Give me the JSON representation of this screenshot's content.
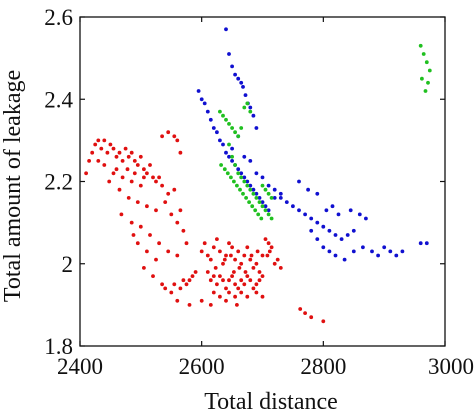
{
  "chart_data": {
    "type": "scatter",
    "title": "",
    "xlabel": "Total distance",
    "ylabel": "Total amount of leakage",
    "xlim": [
      2400,
      3000
    ],
    "ylim": [
      1.8,
      2.6
    ],
    "xticks": [
      2400,
      2600,
      2800,
      3000
    ],
    "yticks": [
      1.8,
      2,
      2.2,
      2.4,
      2.6
    ],
    "xtick_labels": [
      "2400",
      "2600",
      "2800",
      "3000"
    ],
    "ytick_labels": [
      "1.8",
      "2",
      "2.2",
      "2.4",
      "2.6"
    ],
    "grid": false,
    "legend": "none",
    "series": [
      {
        "color": "#e01010",
        "points": [
          [
            2410,
            2.22
          ],
          [
            2415,
            2.25
          ],
          [
            2420,
            2.27
          ],
          [
            2425,
            2.29
          ],
          [
            2430,
            2.3
          ],
          [
            2435,
            2.28
          ],
          [
            2440,
            2.3
          ],
          [
            2445,
            2.27
          ],
          [
            2450,
            2.29
          ],
          [
            2455,
            2.28
          ],
          [
            2460,
            2.26
          ],
          [
            2465,
            2.27
          ],
          [
            2470,
            2.25
          ],
          [
            2475,
            2.28
          ],
          [
            2480,
            2.26
          ],
          [
            2485,
            2.27
          ],
          [
            2490,
            2.25
          ],
          [
            2495,
            2.24
          ],
          [
            2500,
            2.26
          ],
          [
            2505,
            2.23
          ],
          [
            2510,
            2.22
          ],
          [
            2515,
            2.24
          ],
          [
            2520,
            2.21
          ],
          [
            2525,
            2.2
          ],
          [
            2530,
            2.21
          ],
          [
            2535,
            2.19
          ],
          [
            2440,
            2.24
          ],
          [
            2455,
            2.22
          ],
          [
            2470,
            2.21
          ],
          [
            2485,
            2.2
          ],
          [
            2500,
            2.19
          ],
          [
            2430,
            2.25
          ],
          [
            2460,
            2.23
          ],
          [
            2478,
            2.23
          ],
          [
            2490,
            2.22
          ],
          [
            2505,
            2.21
          ],
          [
            2448,
            2.2
          ],
          [
            2465,
            2.18
          ],
          [
            2480,
            2.16
          ],
          [
            2495,
            2.15
          ],
          [
            2510,
            2.14
          ],
          [
            2525,
            2.13
          ],
          [
            2540,
            2.15
          ],
          [
            2545,
            2.17
          ],
          [
            2555,
            2.18
          ],
          [
            2550,
            2.12
          ],
          [
            2560,
            2.1
          ],
          [
            2565,
            2.13
          ],
          [
            2570,
            2.08
          ],
          [
            2575,
            2.05
          ],
          [
            2468,
            2.12
          ],
          [
            2485,
            2.1
          ],
          [
            2500,
            2.09
          ],
          [
            2515,
            2.07
          ],
          [
            2530,
            2.05
          ],
          [
            2545,
            2.03
          ],
          [
            2560,
            2.02
          ],
          [
            2495,
            2.05
          ],
          [
            2510,
            2.03
          ],
          [
            2525,
            2.01
          ],
          [
            2488,
            2.07
          ],
          [
            2505,
            1.99
          ],
          [
            2520,
            1.97
          ],
          [
            2535,
            1.95
          ],
          [
            2540,
            1.94
          ],
          [
            2535,
            2.31
          ],
          [
            2545,
            2.32
          ],
          [
            2555,
            2.31
          ],
          [
            2560,
            2.3
          ],
          [
            2565,
            2.27
          ],
          [
            2600,
            2.03
          ],
          [
            2605,
            2.05
          ],
          [
            2610,
            2.02
          ],
          [
            2615,
            2.01
          ],
          [
            2620,
            2.04
          ],
          [
            2625,
            2.06
          ],
          [
            2630,
            2.03
          ],
          [
            2635,
            2.0
          ],
          [
            2640,
            2.02
          ],
          [
            2645,
            2.05
          ],
          [
            2650,
            2.04
          ],
          [
            2655,
            2.01
          ],
          [
            2660,
            2.03
          ],
          [
            2665,
            2.0
          ],
          [
            2670,
            2.02
          ],
          [
            2675,
            2.04
          ],
          [
            2680,
            2.01
          ],
          [
            2685,
            1.99
          ],
          [
            2690,
            2.0
          ],
          [
            2695,
            1.98
          ],
          [
            2700,
            2.02
          ],
          [
            2705,
            2.06
          ],
          [
            2710,
            2.05
          ],
          [
            2715,
            2.04
          ],
          [
            2720,
            2.0
          ],
          [
            2725,
            2.01
          ],
          [
            2730,
            1.99
          ],
          [
            2610,
            1.98
          ],
          [
            2615,
            1.96
          ],
          [
            2620,
            1.97
          ],
          [
            2625,
            1.95
          ],
          [
            2630,
            1.97
          ],
          [
            2635,
            1.96
          ],
          [
            2640,
            1.94
          ],
          [
            2645,
            1.96
          ],
          [
            2650,
            1.97
          ],
          [
            2655,
            1.95
          ],
          [
            2660,
            1.94
          ],
          [
            2665,
            1.96
          ],
          [
            2670,
            1.95
          ],
          [
            2675,
            1.97
          ],
          [
            2680,
            1.96
          ],
          [
            2685,
            1.94
          ],
          [
            2690,
            1.95
          ],
          [
            2695,
            1.96
          ],
          [
            2700,
            1.97
          ],
          [
            2590,
            1.98
          ],
          [
            2585,
            1.97
          ],
          [
            2580,
            1.96
          ],
          [
            2575,
            1.95
          ],
          [
            2570,
            1.96
          ],
          [
            2565,
            1.94
          ],
          [
            2555,
            1.95
          ],
          [
            2550,
            1.93
          ],
          [
            2620,
            1.93
          ],
          [
            2630,
            1.92
          ],
          [
            2645,
            1.93
          ],
          [
            2655,
            1.92
          ],
          [
            2665,
            1.93
          ],
          [
            2675,
            1.92
          ],
          [
            2690,
            1.93
          ],
          [
            2700,
            1.92
          ],
          [
            2560,
            1.91
          ],
          [
            2580,
            1.9
          ],
          [
            2600,
            1.91
          ],
          [
            2615,
            1.9
          ],
          [
            2640,
            1.91
          ],
          [
            2658,
            1.9
          ],
          [
            2762,
            1.89
          ],
          [
            2770,
            1.88
          ],
          [
            2780,
            1.87
          ],
          [
            2800,
            1.86
          ],
          [
            2623,
            1.99
          ],
          [
            2638,
            2.01
          ],
          [
            2648,
            2.02
          ],
          [
            2653,
            1.98
          ],
          [
            2662,
            1.99
          ],
          [
            2672,
            1.98
          ],
          [
            2682,
            2.02
          ],
          [
            2692,
            2.03
          ],
          [
            2708,
            2.02
          ],
          [
            2712,
            2.03
          ]
        ]
      },
      {
        "color": "#1010d0",
        "points": [
          [
            2640,
            2.57
          ],
          [
            2645,
            2.51
          ],
          [
            2650,
            2.48
          ],
          [
            2655,
            2.46
          ],
          [
            2660,
            2.45
          ],
          [
            2665,
            2.44
          ],
          [
            2668,
            2.43
          ],
          [
            2672,
            2.41
          ],
          [
            2676,
            2.39
          ],
          [
            2680,
            2.38
          ],
          [
            2685,
            2.36
          ],
          [
            2690,
            2.33
          ],
          [
            2595,
            2.42
          ],
          [
            2600,
            2.4
          ],
          [
            2605,
            2.39
          ],
          [
            2610,
            2.37
          ],
          [
            2615,
            2.35
          ],
          [
            2620,
            2.33
          ],
          [
            2625,
            2.32
          ],
          [
            2630,
            2.3
          ],
          [
            2635,
            2.29
          ],
          [
            2640,
            2.27
          ],
          [
            2645,
            2.26
          ],
          [
            2650,
            2.25
          ],
          [
            2655,
            2.24
          ],
          [
            2660,
            2.23
          ],
          [
            2665,
            2.22
          ],
          [
            2670,
            2.21
          ],
          [
            2675,
            2.2
          ],
          [
            2680,
            2.19
          ],
          [
            2685,
            2.18
          ],
          [
            2690,
            2.17
          ],
          [
            2695,
            2.16
          ],
          [
            2700,
            2.15
          ],
          [
            2705,
            2.14
          ],
          [
            2710,
            2.13
          ],
          [
            2720,
            2.16
          ],
          [
            2730,
            2.17
          ],
          [
            2740,
            2.15
          ],
          [
            2750,
            2.14
          ],
          [
            2760,
            2.13
          ],
          [
            2770,
            2.12
          ],
          [
            2780,
            2.11
          ],
          [
            2790,
            2.1
          ],
          [
            2800,
            2.09
          ],
          [
            2810,
            2.08
          ],
          [
            2820,
            2.07
          ],
          [
            2830,
            2.06
          ],
          [
            2840,
            2.07
          ],
          [
            2850,
            2.08
          ],
          [
            2760,
            2.2
          ],
          [
            2775,
            2.18
          ],
          [
            2790,
            2.17
          ],
          [
            2805,
            2.13
          ],
          [
            2815,
            2.14
          ],
          [
            2825,
            2.12
          ],
          [
            2845,
            2.13
          ],
          [
            2860,
            2.12
          ],
          [
            2870,
            2.11
          ],
          [
            2780,
            2.08
          ],
          [
            2790,
            2.06
          ],
          [
            2800,
            2.04
          ],
          [
            2810,
            2.03
          ],
          [
            2820,
            2.02
          ],
          [
            2835,
            2.01
          ],
          [
            2850,
            2.03
          ],
          [
            2865,
            2.04
          ],
          [
            2880,
            2.03
          ],
          [
            2890,
            2.02
          ],
          [
            2900,
            2.04
          ],
          [
            2910,
            2.03
          ],
          [
            2920,
            2.02
          ],
          [
            2930,
            2.03
          ],
          [
            2960,
            2.05
          ],
          [
            2970,
            2.05
          ],
          [
            2650,
            2.28
          ],
          [
            2660,
            2.31
          ],
          [
            2670,
            2.26
          ],
          [
            2680,
            2.25
          ],
          [
            2690,
            2.22
          ],
          [
            2700,
            2.21
          ],
          [
            2710,
            2.19
          ],
          [
            2720,
            2.18
          ],
          [
            2730,
            2.16
          ]
        ]
      },
      {
        "color": "#20c020",
        "points": [
          [
            2640,
            2.35
          ],
          [
            2645,
            2.34
          ],
          [
            2650,
            2.33
          ],
          [
            2655,
            2.32
          ],
          [
            2660,
            2.31
          ],
          [
            2665,
            2.33
          ],
          [
            2670,
            2.38
          ],
          [
            2675,
            2.39
          ],
          [
            2680,
            2.37
          ],
          [
            2635,
            2.36
          ],
          [
            2630,
            2.37
          ],
          [
            2645,
            2.29
          ],
          [
            2650,
            2.26
          ],
          [
            2655,
            2.24
          ],
          [
            2660,
            2.22
          ],
          [
            2665,
            2.21
          ],
          [
            2670,
            2.2
          ],
          [
            2675,
            2.19
          ],
          [
            2680,
            2.18
          ],
          [
            2685,
            2.17
          ],
          [
            2690,
            2.16
          ],
          [
            2695,
            2.15
          ],
          [
            2700,
            2.14
          ],
          [
            2705,
            2.13
          ],
          [
            2710,
            2.12
          ],
          [
            2715,
            2.11
          ],
          [
            2700,
            2.19
          ],
          [
            2705,
            2.18
          ],
          [
            2710,
            2.17
          ],
          [
            2715,
            2.16
          ],
          [
            2632,
            2.24
          ],
          [
            2638,
            2.23
          ],
          [
            2643,
            2.22
          ],
          [
            2648,
            2.21
          ],
          [
            2653,
            2.2
          ],
          [
            2658,
            2.19
          ],
          [
            2663,
            2.18
          ],
          [
            2668,
            2.17
          ],
          [
            2673,
            2.16
          ],
          [
            2678,
            2.15
          ],
          [
            2683,
            2.14
          ],
          [
            2688,
            2.13
          ],
          [
            2693,
            2.12
          ],
          [
            2698,
            2.11
          ],
          [
            2960,
            2.53
          ],
          [
            2965,
            2.51
          ],
          [
            2970,
            2.49
          ],
          [
            2975,
            2.47
          ],
          [
            2962,
            2.45
          ],
          [
            2972,
            2.44
          ],
          [
            2968,
            2.42
          ]
        ]
      }
    ]
  }
}
